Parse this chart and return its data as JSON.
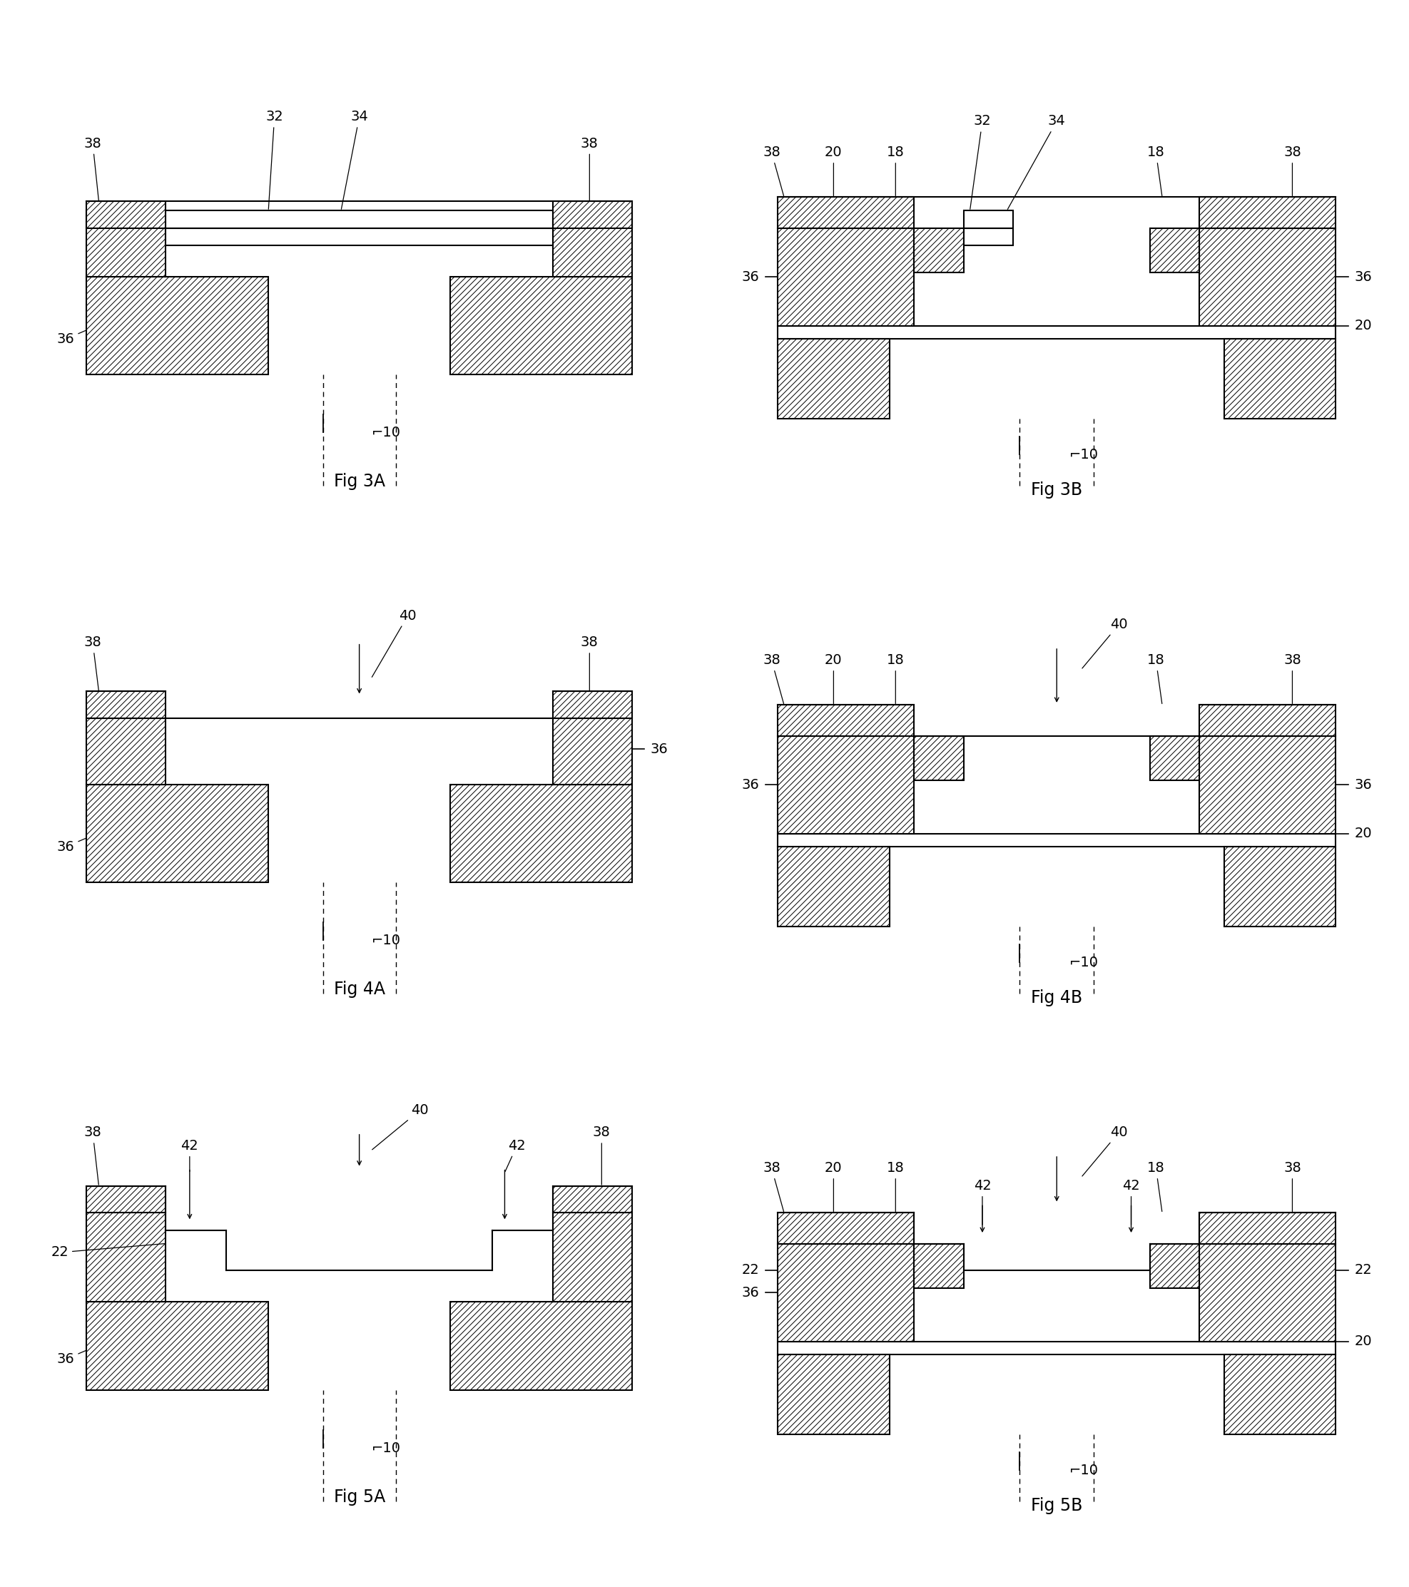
{
  "bg_color": "#ffffff",
  "hatch_pattern": "////",
  "lw_main": 1.5,
  "lw_hatch": 0.7,
  "fontsize_num": 14,
  "fontsize_fig": 17,
  "fig_labels": [
    "Fig 3A",
    "Fig 3B",
    "Fig 4A",
    "Fig 4B",
    "Fig 5A",
    "Fig 5B"
  ]
}
